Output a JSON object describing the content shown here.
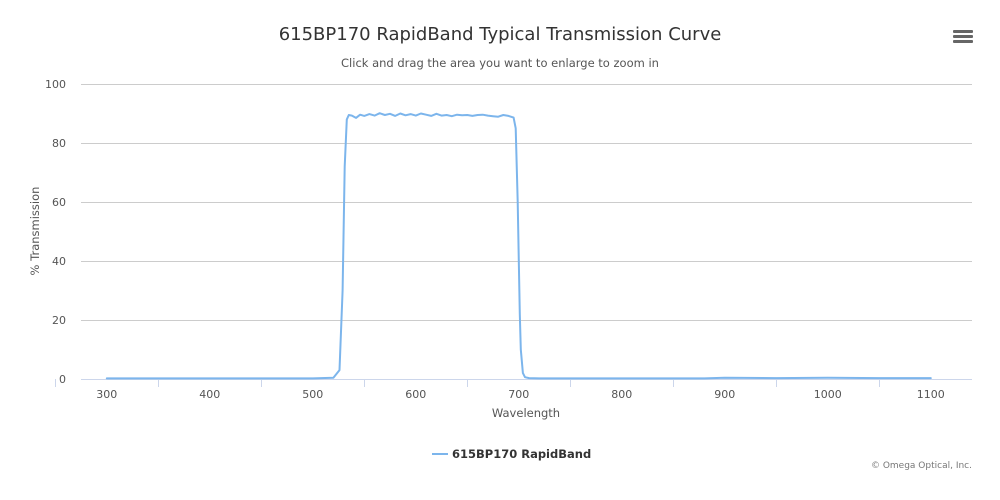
{
  "header": {
    "title": "615BP170 RapidBand Typical Transmission Curve",
    "subtitle": "Click and drag the area you want to enlarge to zoom in",
    "menu_icon": "hamburger-menu-icon"
  },
  "credits": "© Omega Optical, Inc.",
  "colors": {
    "series": "#7cb5ec",
    "grid": "#cccccc",
    "axis": "#ccd6eb"
  },
  "chart_data": {
    "type": "line",
    "title": "615BP170 RapidBand Typical Transmission Curve",
    "subtitle": "Click and drag the area you want to enlarge to zoom in",
    "xlabel": "Wavelength",
    "ylabel": "% Transmission",
    "xlim": [
      275,
      1140
    ],
    "ylim": [
      0,
      100
    ],
    "x_ticks": [
      300,
      400,
      500,
      600,
      700,
      800,
      900,
      1000,
      1100
    ],
    "y_ticks": [
      0,
      20,
      40,
      60,
      80,
      100
    ],
    "grid": "horizontal",
    "legend": "bottom-center",
    "series": [
      {
        "name": "615BP170 RapidBand",
        "x": [
          300,
          400,
          500,
          520,
          526,
          529,
          531,
          533,
          535,
          538,
          542,
          546,
          550,
          555,
          560,
          565,
          570,
          575,
          580,
          585,
          590,
          595,
          600,
          605,
          610,
          615,
          620,
          625,
          630,
          635,
          640,
          645,
          650,
          655,
          660,
          665,
          670,
          675,
          680,
          685,
          690,
          695,
          697,
          699,
          700,
          701,
          702,
          704,
          706,
          710,
          720,
          800,
          880,
          900,
          950,
          1000,
          1050,
          1100
        ],
        "values": [
          0.2,
          0.2,
          0.2,
          0.4,
          3,
          30,
          72,
          88,
          89.5,
          89.3,
          88.5,
          89.6,
          89.2,
          89.8,
          89.3,
          90.1,
          89.5,
          89.9,
          89.2,
          90.0,
          89.4,
          89.8,
          89.3,
          90.0,
          89.6,
          89.2,
          89.9,
          89.3,
          89.5,
          89.1,
          89.6,
          89.4,
          89.5,
          89.2,
          89.5,
          89.6,
          89.3,
          89.1,
          88.9,
          89.5,
          89.2,
          88.6,
          85,
          60,
          40,
          22,
          10,
          2,
          0.6,
          0.3,
          0.2,
          0.2,
          0.2,
          0.4,
          0.3,
          0.4,
          0.3,
          0.3
        ]
      }
    ]
  }
}
